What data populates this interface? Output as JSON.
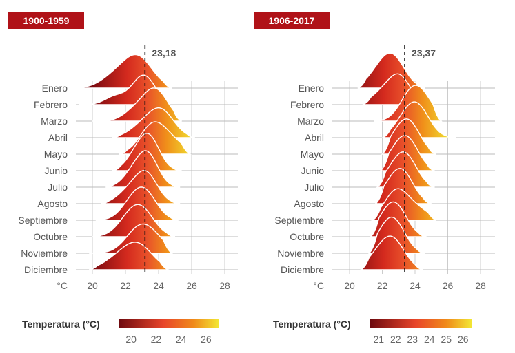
{
  "colors": {
    "title_bg": "#b01218",
    "ridge_low": "#7a0a10",
    "ridge_mid": "#e8502a",
    "ridge_high": "#f0dc30",
    "gridline": "#bbbbbb",
    "mean_line": "#111111"
  },
  "chart_data": [
    {
      "type": "ridgeline",
      "title": "1900-1959",
      "xlabel": "°C",
      "xlim": [
        19,
        29
      ],
      "xticks": [
        20,
        22,
        24,
        26,
        28
      ],
      "mean_value": 23.18,
      "mean_label": "23,18",
      "legend": {
        "title": "Temperatura (°C)",
        "range": [
          19,
          27
        ],
        "ticks": [
          "20",
          "22",
          "24",
          "26"
        ]
      },
      "series": [
        {
          "name": "Enero",
          "peak": 22.7,
          "spread": 0.9,
          "height": 1.35,
          "lo": 19.0,
          "hi": 24.8,
          "shoulder": 21.2
        },
        {
          "name": "Febrero",
          "peak": 23.1,
          "spread": 0.7,
          "height": 1.25,
          "lo": 19.2,
          "hi": 24.7,
          "shoulder": 21.4
        },
        {
          "name": "Marzo",
          "peak": 23.8,
          "spread": 0.75,
          "height": 1.35,
          "lo": 20.0,
          "hi": 25.4,
          "shoulder": 22.5
        },
        {
          "name": "Abril",
          "peak": 24.1,
          "spread": 0.8,
          "height": 1.2,
          "lo": 21.2,
          "hi": 26.2,
          "shoulder": 22.8
        },
        {
          "name": "Mayo",
          "peak": 23.7,
          "spread": 0.8,
          "height": 1.3,
          "lo": 21.6,
          "hi": 25.9,
          "shoulder": 25.0
        },
        {
          "name": "Junio",
          "peak": 23.4,
          "spread": 0.65,
          "height": 1.45,
          "lo": 21.2,
          "hi": 25.4,
          "shoulder": 22.5
        },
        {
          "name": "Julio",
          "peak": 23.3,
          "spread": 0.65,
          "height": 1.45,
          "lo": 20.8,
          "hi": 25.3,
          "shoulder": 22.3
        },
        {
          "name": "Agosto",
          "peak": 23.2,
          "spread": 0.7,
          "height": 1.35,
          "lo": 20.5,
          "hi": 25.3,
          "shoulder": 22.0
        },
        {
          "name": "Septiembre",
          "peak": 23.1,
          "spread": 0.75,
          "height": 1.25,
          "lo": 20.2,
          "hi": 25.2,
          "shoulder": 22.2
        },
        {
          "name": "Octubre",
          "peak": 22.9,
          "spread": 0.8,
          "height": 1.2,
          "lo": 20.0,
          "hi": 25.0,
          "shoulder": 22.0
        },
        {
          "name": "Noviembre",
          "peak": 22.9,
          "spread": 0.85,
          "height": 1.1,
          "lo": 19.8,
          "hi": 24.8,
          "shoulder": 23.9
        },
        {
          "name": "Diciembre",
          "peak": 22.7,
          "spread": 0.9,
          "height": 1.1,
          "lo": 19.8,
          "hi": 24.6,
          "shoulder": 21.3
        }
      ]
    },
    {
      "type": "ridgeline",
      "title": "1906-2017",
      "xlabel": "°C",
      "xlim": [
        19,
        29
      ],
      "xticks": [
        20,
        22,
        24,
        26,
        28
      ],
      "mean_value": 23.37,
      "mean_label": "23,37",
      "legend": {
        "title": "Temperatura (°C)",
        "range": [
          20.5,
          26.5
        ],
        "ticks": [
          "21",
          "22",
          "23",
          "24",
          "25",
          "26"
        ]
      },
      "series": [
        {
          "name": "Enero",
          "peak": 22.6,
          "spread": 0.75,
          "height": 1.35,
          "lo": 20.5,
          "hi": 24.6,
          "shoulder": 21.6
        },
        {
          "name": "Febrero",
          "peak": 23.0,
          "spread": 0.7,
          "height": 1.25,
          "lo": 20.8,
          "hi": 24.7,
          "shoulder": 21.8
        },
        {
          "name": "Marzo",
          "peak": 23.9,
          "spread": 0.75,
          "height": 1.35,
          "lo": 21.5,
          "hi": 25.6,
          "shoulder": 24.8
        },
        {
          "name": "Abril",
          "peak": 24.1,
          "spread": 0.75,
          "height": 1.35,
          "lo": 22.0,
          "hi": 26.5,
          "shoulder": 23.2
        },
        {
          "name": "Mayo",
          "peak": 23.6,
          "spread": 0.7,
          "height": 1.35,
          "lo": 22.0,
          "hi": 25.3,
          "shoulder": 22.7
        },
        {
          "name": "Junio",
          "peak": 23.5,
          "spread": 0.7,
          "height": 1.35,
          "lo": 21.9,
          "hi": 25.2,
          "shoulder": 22.6
        },
        {
          "name": "Julio",
          "peak": 23.4,
          "spread": 0.7,
          "height": 1.35,
          "lo": 21.7,
          "hi": 25.2,
          "shoulder": 22.5
        },
        {
          "name": "Agosto",
          "peak": 23.2,
          "spread": 0.7,
          "height": 1.35,
          "lo": 21.6,
          "hi": 25.0,
          "shoulder": 22.3
        },
        {
          "name": "Septiembre",
          "peak": 22.9,
          "spread": 0.75,
          "height": 1.3,
          "lo": 21.4,
          "hi": 25.3,
          "shoulder": 24.3
        },
        {
          "name": "Octubre",
          "peak": 22.8,
          "spread": 0.7,
          "height": 1.3,
          "lo": 21.3,
          "hi": 24.7,
          "shoulder": 22.0
        },
        {
          "name": "Noviembre",
          "peak": 22.7,
          "spread": 0.7,
          "height": 1.35,
          "lo": 21.2,
          "hi": 24.6,
          "shoulder": 21.9
        },
        {
          "name": "Diciembre",
          "peak": 22.6,
          "spread": 0.75,
          "height": 1.3,
          "lo": 20.7,
          "hi": 24.5,
          "shoulder": 21.6
        }
      ]
    }
  ]
}
